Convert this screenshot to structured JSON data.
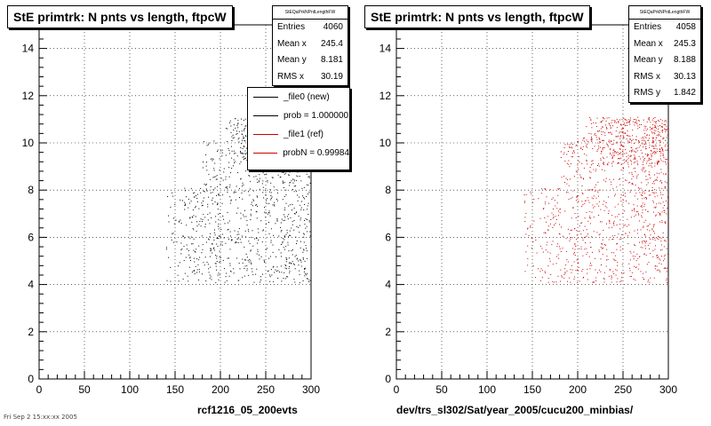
{
  "left_panel": {
    "title": "StE primtrk: N pnts vs length, ftpcW",
    "stats": {
      "header": "StEQaPrkNPntLengthFW",
      "rows": [
        {
          "label": "Entries",
          "value": "4060"
        },
        {
          "label": "Mean x",
          "value": "245.4"
        },
        {
          "label": "Mean y",
          "value": "8.181"
        },
        {
          "label": "RMS x",
          "value": "30.19"
        }
      ]
    },
    "legend": [
      {
        "label": "_file0 (new)",
        "color": "#000000"
      },
      {
        "label": "prob = 1.000000",
        "color": "#000000"
      },
      {
        "label": "_file1 (ref)",
        "color": "#cc0000"
      },
      {
        "label": "probN = 0.99984",
        "color": "#cc0000"
      }
    ],
    "xcaption": "rcf1216_05_200evts"
  },
  "right_panel": {
    "title": "StE primtrk: N pnts vs length, ftpcW",
    "stats": {
      "header": "StEQaPrkNPntLengthFW",
      "rows": [
        {
          "label": "Entries",
          "value": "4058"
        },
        {
          "label": "Mean x",
          "value": "245.3"
        },
        {
          "label": "Mean y",
          "value": "8.188"
        },
        {
          "label": "RMS x",
          "value": "30.13"
        },
        {
          "label": "RMS y",
          "value": "1.842"
        }
      ]
    },
    "xcaption": "dev/trs_sl302/Sat/year_2005/cucu200_minbias/"
  },
  "footer_text": "Fri Sep  2 15:xx:xx 2005",
  "chart_data": [
    {
      "type": "scatter",
      "title": "StE primtrk: N pnts vs length, ftpcW",
      "xlabel": "",
      "ylabel": "",
      "xlim": [
        0,
        300
      ],
      "ylim": [
        0,
        15
      ],
      "xticks": [
        0,
        50,
        100,
        150,
        200,
        250,
        300
      ],
      "yticks": [
        0,
        2,
        4,
        6,
        8,
        10,
        12,
        14
      ],
      "grid": true,
      "series": [
        {
          "name": "_file0 (new)",
          "color": "#000000",
          "entries": 4060,
          "x_range": [
            140,
            300
          ],
          "y_values": [
            5,
            6,
            7,
            8,
            9,
            10,
            11
          ]
        }
      ]
    },
    {
      "type": "scatter",
      "title": "StE primtrk: N pnts vs length, ftpcW",
      "xlabel": "",
      "ylabel": "",
      "xlim": [
        0,
        300
      ],
      "ylim": [
        0,
        15
      ],
      "xticks": [
        0,
        50,
        100,
        150,
        200,
        250,
        300
      ],
      "yticks": [
        0,
        2,
        4,
        6,
        8,
        10,
        12,
        14
      ],
      "grid": true,
      "series": [
        {
          "name": "_file1 (ref)",
          "color": "#cc0000",
          "entries": 4058,
          "x_range": [
            140,
            300
          ],
          "y_values": [
            5,
            6,
            7,
            8,
            9,
            10,
            11
          ]
        }
      ]
    }
  ]
}
